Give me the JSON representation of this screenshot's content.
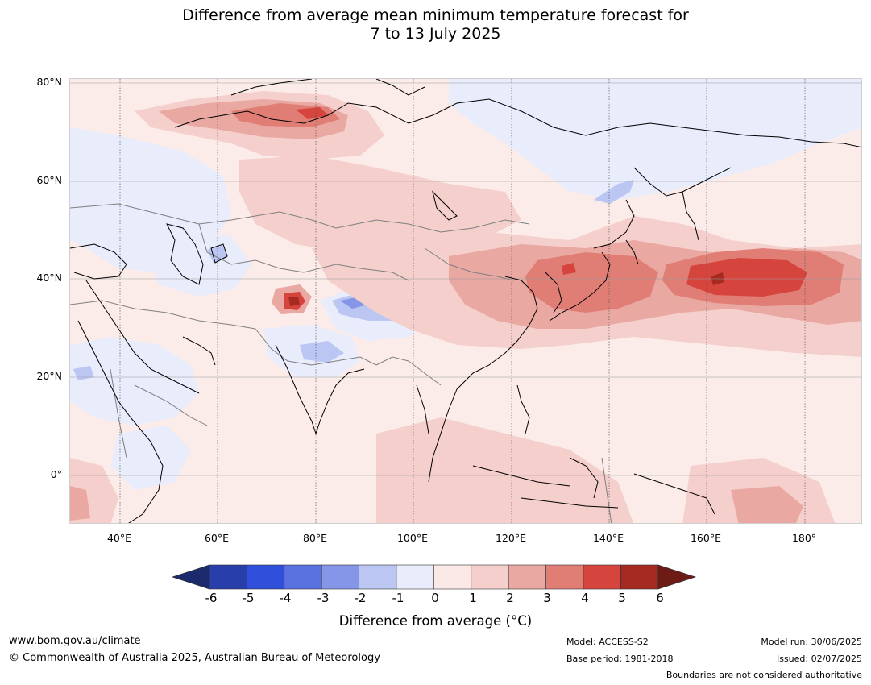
{
  "title": {
    "line1": "Difference from average mean minimum temperature forecast for",
    "line2": "7 to 13 July 2025"
  },
  "map": {
    "lat_labels": [
      "80°N",
      "60°N",
      "40°N",
      "20°N",
      "0°"
    ],
    "lon_labels": [
      "40°E",
      "60°E",
      "80°E",
      "100°E",
      "120°E",
      "140°E",
      "160°E",
      "180°"
    ]
  },
  "colorbar": {
    "ticks": [
      "-6",
      "-5",
      "-4",
      "-3",
      "-2",
      "-1",
      "0",
      "1",
      "2",
      "3",
      "4",
      "5",
      "6"
    ],
    "colors": [
      "#1b2a6b",
      "#283ea8",
      "#3050dc",
      "#5a72e0",
      "#8596e8",
      "#bcc6f3",
      "#e8ecfb",
      "#fbe9e7",
      "#f4cfcc",
      "#eaa8a2",
      "#e07e76",
      "#d6453d",
      "#a52a22",
      "#6e1a15"
    ],
    "label": "Difference from average (°C)"
  },
  "footer": {
    "url": "www.bom.gov.au/climate",
    "copyright": "© Commonwealth of Australia 2025, Australian Bureau of Meteorology",
    "model": "Model: ACCESS-S2",
    "base_period": "Base period: 1981-2018",
    "model_run": "Model run: 30/06/2025",
    "issued": "Issued: 02/07/2025",
    "disclaimer": "Boundaries are not considered authoritative"
  }
}
